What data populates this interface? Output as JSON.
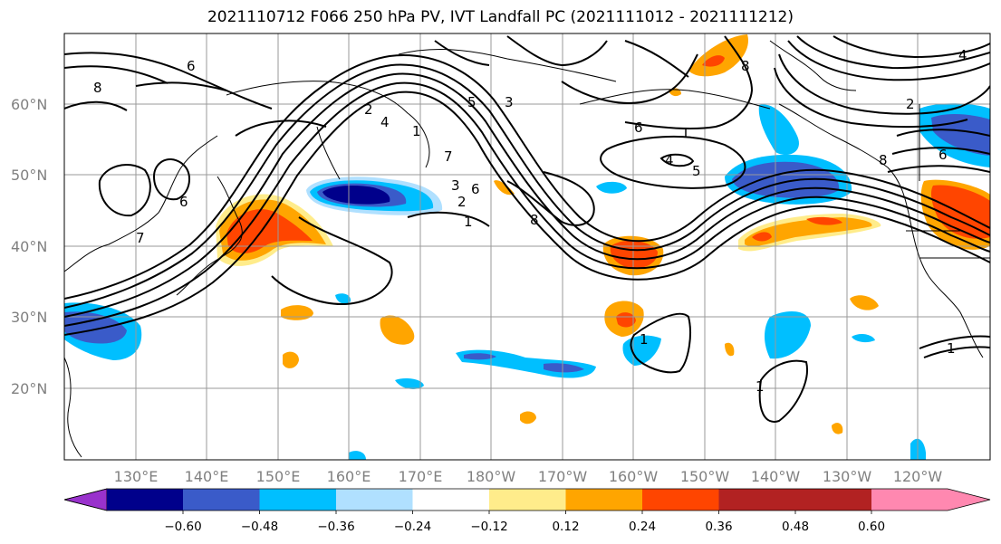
{
  "title": "2021110712 F066 250 hPa PV, IVT Landfall PC (2021111012 - 2021111212)",
  "lat_labels": [
    "60°N",
    "50°N",
    "40°N",
    "30°N",
    "20°N"
  ],
  "lon_labels": [
    "130°E",
    "140°E",
    "150°E",
    "160°E",
    "170°E",
    "180°W",
    "170°W",
    "160°W",
    "150°W",
    "140°W",
    "130°W",
    "120°W"
  ],
  "colorbar": {
    "colors": [
      "#9932CC",
      "#00008B",
      "#3A5BC9",
      "#00BFFF",
      "#B0E0FF",
      "#FFFFFF",
      "#FFEC8B",
      "#FFA500",
      "#FF4500",
      "#B22222",
      "#FF88B0"
    ],
    "tick_labels": [
      "−0.60",
      "−0.48",
      "−0.36",
      "−0.24",
      "−0.12",
      "0.12",
      "0.24",
      "0.36",
      "0.48",
      "0.60"
    ]
  },
  "contour_labels": [
    "8",
    "6",
    "7",
    "6",
    "5",
    "4",
    "3",
    "3",
    "1",
    "2",
    "6",
    "7",
    "2",
    "1",
    "8",
    "6",
    "4",
    "5",
    "8",
    "1",
    "1",
    "1",
    "2",
    "6",
    "8",
    "4",
    "1"
  ]
}
